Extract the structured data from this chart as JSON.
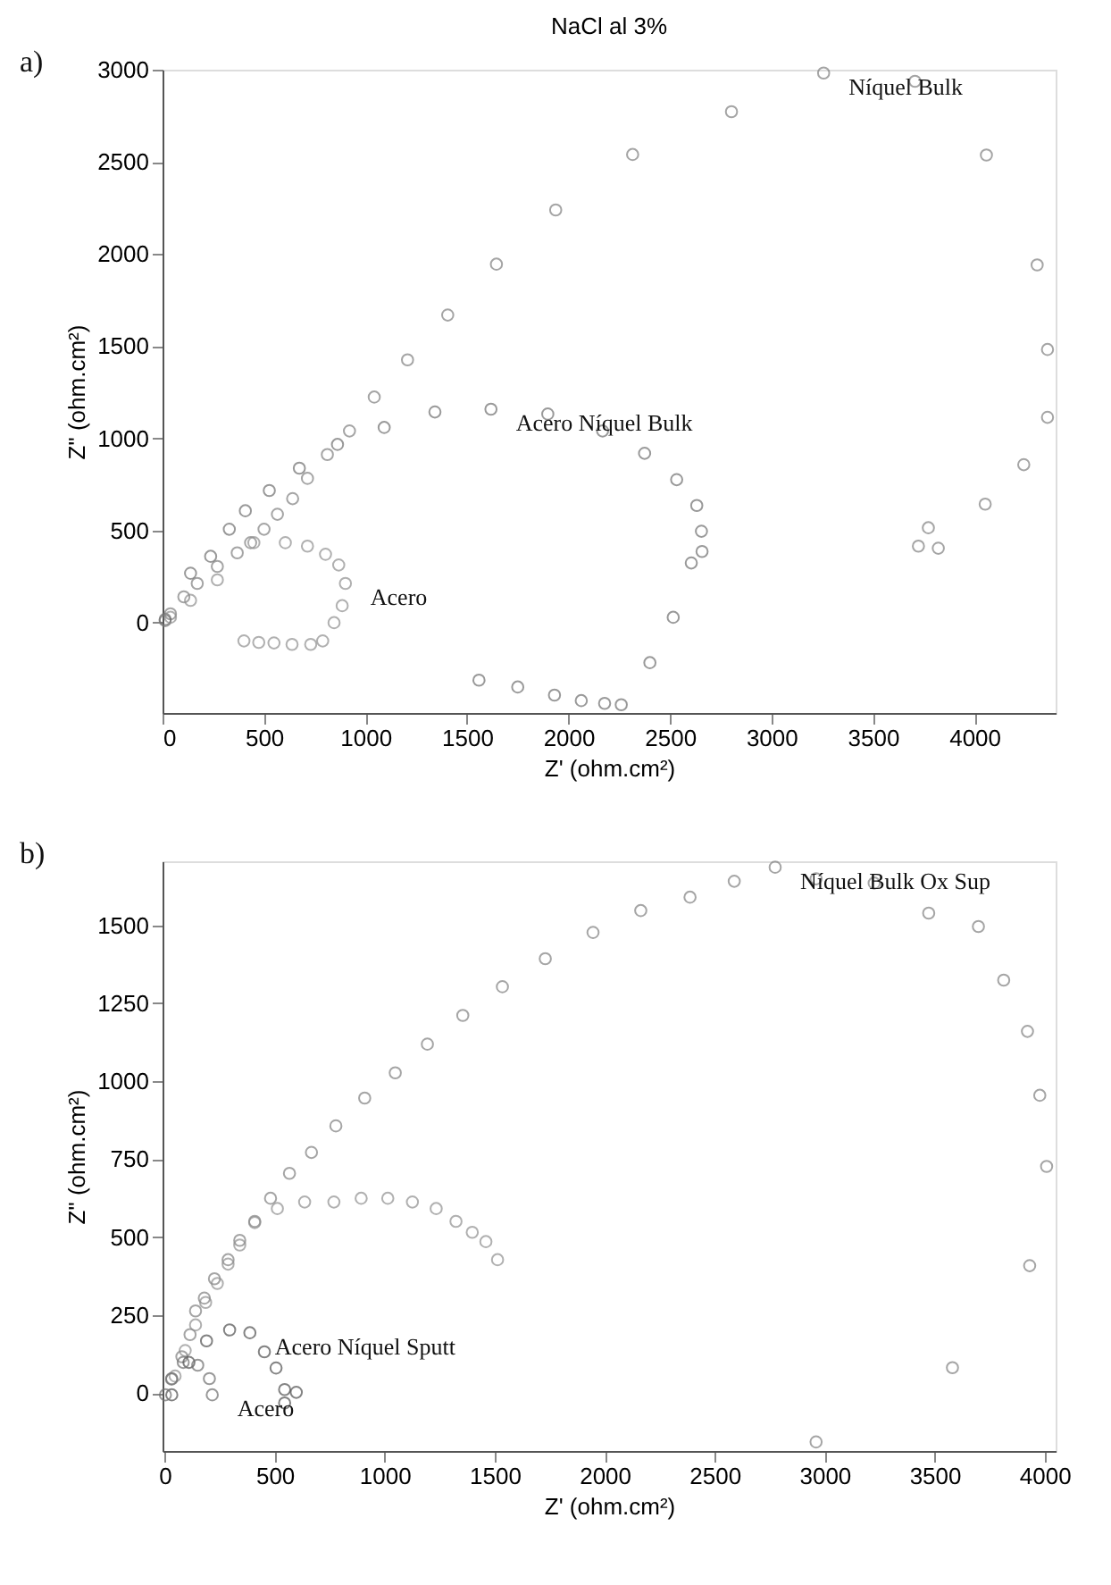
{
  "chart_data": [
    {
      "type": "scatter",
      "title": "NaCl al 3%",
      "xlabel": "Z' (ohm.cm²)",
      "ylabel": "Z\" (ohm.cm²)",
      "xlim": [
        0,
        4400
      ],
      "ylim": [
        -490,
        3000
      ],
      "xticks": [
        0,
        500,
        1000,
        1500,
        2000,
        2500,
        3000,
        3500,
        4000
      ],
      "yticks": [
        0,
        500,
        1000,
        1500,
        2000,
        2500,
        3000
      ],
      "grid": false,
      "marker": "circle",
      "annotations": [
        "a)",
        {
          "text": "Níquel Bulk",
          "x": 3257,
          "y": 2982
        },
        {
          "text": "Acero Níquel Bulk",
          "x": 1618,
          "y": 1158
        },
        {
          "text": "Acero",
          "x": 901,
          "y": 213
        }
      ],
      "series": [
        {
          "color": "#7f7f7f",
          "x": [
            13,
            39,
            105,
            171,
            270,
            368,
            434,
            500,
            566,
            641,
            714,
            812,
            921,
            1043,
            1207,
            1405,
            1645,
            1937,
            2316,
            2803,
            3257,
            3707,
            4059,
            4309,
            4360,
            4360,
            4243,
            4053,
            3773,
            3724,
            3822
          ],
          "values": [
            11,
            48,
            140,
            213,
            305,
            379,
            434,
            507,
            588,
            673,
            783,
            912,
            1040,
            1224,
            1426,
            1669,
            1945,
            2239,
            2540,
            2772,
            2982,
            2937,
            2537,
            1941,
            1482,
            1114,
            857,
            643,
            515,
            415,
            404
          ]
        },
        {
          "color": "#6f6f6f",
          "x": [
            13,
            138,
            237,
            329,
            408,
            526,
            674,
            862,
            1092,
            1342,
            1618,
            1898,
            2168,
            2375,
            2533,
            2632,
            2655,
            2658,
            2605,
            2516,
            2401,
            2260,
            2178,
            2063,
            1931,
            1750,
            1559
          ],
          "values": [
            18,
            268,
            360,
            507,
            607,
            717,
            838,
            967,
            1059,
            1143,
            1158,
            1132,
            1040,
            919,
            776,
            636,
            496,
            386,
            324,
            29,
            -217,
            -445,
            -438,
            -423,
            -393,
            -349,
            -312
          ]
        },
        {
          "color": "#8f8f8f",
          "x": [
            39,
            138,
            270,
            450,
            605,
            714,
            803,
            868,
            901,
            885,
            845,
            789,
            730,
            638,
            549,
            474,
            401
          ],
          "values": [
            29,
            121,
            232,
            434,
            434,
            415,
            371,
            313,
            213,
            92,
            0,
            -99,
            -118,
            -118,
            -110,
            -107,
            -99
          ]
        }
      ]
    },
    {
      "type": "scatter",
      "xlabel": "Z' (ohm.cm²)",
      "ylabel": "Z\" (ohm.cm²)",
      "xlim": [
        -10,
        4050
      ],
      "ylim": [
        -185,
        1705
      ],
      "xticks": [
        0,
        500,
        1000,
        1500,
        2000,
        2500,
        3000,
        3500,
        4000
      ],
      "yticks": [
        0,
        250,
        500,
        750,
        1000,
        1250,
        1500
      ],
      "grid": false,
      "marker": "circle",
      "annotations": [
        "b)",
        {
          "text": "Níquel Bulk Ox Sup",
          "x": 2775,
          "y": 1686
        },
        {
          "text": "Acero Níquel Sputt",
          "x": 387,
          "y": 194
        },
        {
          "text": "Acero",
          "x": 216,
          "y": -5
        }
      ],
      "series": [
        {
          "color": "#7f7f7f",
          "x": [
            31,
            78,
            115,
            140,
            180,
            226,
            288,
            341,
            409,
            481,
            567,
            667,
            778,
            909,
            1048,
            1194,
            1355,
            1535,
            1730,
            1947,
            2164,
            2388,
            2589,
            2775,
            2961,
            3225,
            3473,
            3699,
            3814,
            3922,
            3978,
            4009,
            3932,
            3581,
            2961
          ],
          "values": [
            45,
            117,
            188,
            264,
            305,
            367,
            428,
            490,
            551,
            625,
            705,
            772,
            857,
            946,
            1027,
            1119,
            1211,
            1303,
            1393,
            1477,
            1547,
            1590,
            1641,
            1686,
            1649,
            1635,
            1539,
            1496,
            1324,
            1160,
            955,
            727,
            409,
            82,
            -156
          ]
        },
        {
          "color": "#8f8f8f",
          "x": [
            47,
            93,
            140,
            186,
            239,
            288,
            341,
            409,
            512,
            636,
            769,
            893,
            1014,
            1126,
            1234,
            1324,
            1398,
            1460,
            1513
          ],
          "values": [
            55,
            137,
            219,
            291,
            352,
            414,
            475,
            547,
            592,
            613,
            613,
            625,
            625,
            613,
            592,
            551,
            516,
            486,
            428
          ]
        },
        {
          "color": "#4f4f4f",
          "x": [
            32,
            110,
            190,
            295,
            387,
            453,
            506,
            545,
            545,
            598
          ],
          "values": [
            -5,
            99,
            168,
            203,
            194,
            133,
            81,
            12,
            -31,
            3
          ]
        },
        {
          "color": "#6f6f6f",
          "x": [
            3,
            32,
            84,
            150,
            203,
            216
          ],
          "values": [
            -5,
            47,
            99,
            90,
            47,
            -5
          ]
        }
      ]
    }
  ]
}
